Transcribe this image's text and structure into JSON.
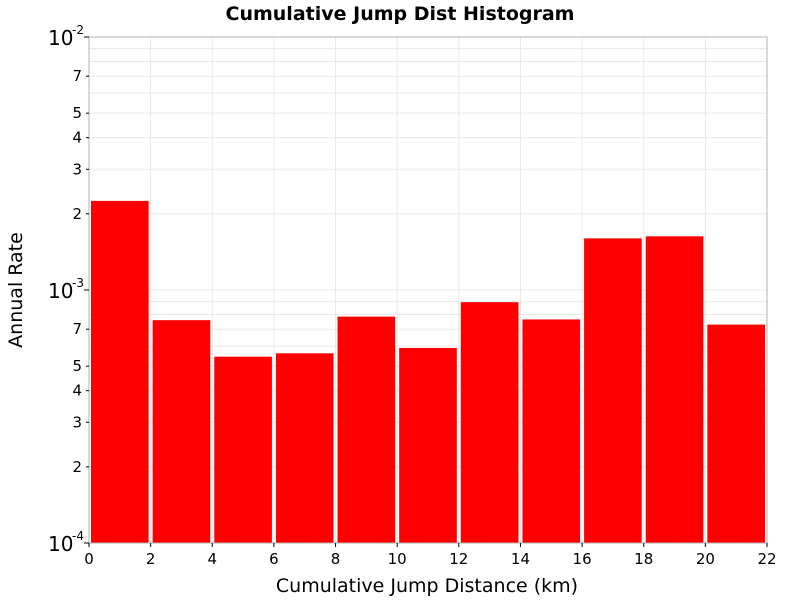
{
  "chart_data": {
    "type": "bar",
    "title": "Cumulative Jump Dist Histogram",
    "xlabel": "Cumulative Jump Distance (km)",
    "ylabel": "Annual Rate",
    "xlim": [
      0,
      22
    ],
    "ylim": [
      0.0001,
      0.01
    ],
    "yscale": "log",
    "grid": true,
    "bar_color": "#ff0000",
    "x_ticks": [
      "0",
      "2",
      "4",
      "6",
      "8",
      "10",
      "12",
      "14",
      "16",
      "18",
      "20",
      "22"
    ],
    "y_major_ticks": [
      {
        "value": 0.0001,
        "base": "10",
        "exp": "-4"
      },
      {
        "value": 0.001,
        "base": "10",
        "exp": "-3"
      },
      {
        "value": 0.01,
        "base": "10",
        "exp": "-2"
      }
    ],
    "y_minor_ticks": [
      {
        "value": 0.0002,
        "label": "2"
      },
      {
        "value": 0.0003,
        "label": "3"
      },
      {
        "value": 0.0004,
        "label": "4"
      },
      {
        "value": 0.0005,
        "label": "5"
      },
      {
        "value": 0.0007,
        "label": "7"
      },
      {
        "value": 0.002,
        "label": "2"
      },
      {
        "value": 0.003,
        "label": "3"
      },
      {
        "value": 0.004,
        "label": "4"
      },
      {
        "value": 0.005,
        "label": "5"
      },
      {
        "value": 0.007,
        "label": "7"
      }
    ],
    "bins": [
      {
        "x0": 0,
        "x1": 2,
        "value": 0.00225
      },
      {
        "x0": 2,
        "x1": 4,
        "value": 0.00076
      },
      {
        "x0": 4,
        "x1": 6,
        "value": 0.000545
      },
      {
        "x0": 6,
        "x1": 8,
        "value": 0.000562
      },
      {
        "x0": 8,
        "x1": 10,
        "value": 0.000785
      },
      {
        "x0": 10,
        "x1": 12,
        "value": 0.00059
      },
      {
        "x0": 12,
        "x1": 14,
        "value": 0.000895
      },
      {
        "x0": 14,
        "x1": 16,
        "value": 0.000765
      },
      {
        "x0": 16,
        "x1": 18,
        "value": 0.0016
      },
      {
        "x0": 18,
        "x1": 20,
        "value": 0.00163
      },
      {
        "x0": 20,
        "x1": 22,
        "value": 0.00073
      }
    ]
  }
}
